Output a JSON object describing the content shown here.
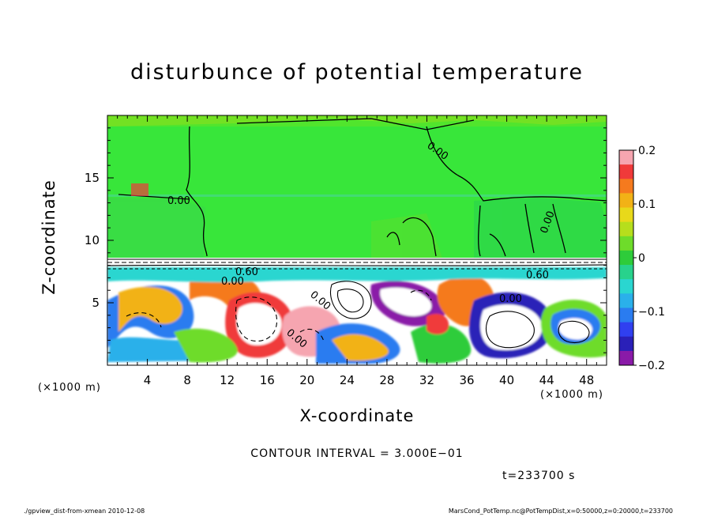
{
  "chart_data": {
    "type": "heatmap",
    "title": "disturbunce of potential temperature",
    "xlabel": "X-coordinate",
    "ylabel": "Z-coordinate",
    "x_unit": "(×1000 m)",
    "x_ticks": [
      "4",
      "8",
      "12",
      "16",
      "20",
      "24",
      "28",
      "32",
      "36",
      "40",
      "44",
      "48"
    ],
    "y_ticks": [
      "5",
      "10",
      "15"
    ],
    "xlim": [
      0,
      50
    ],
    "ylim": [
      0,
      20
    ],
    "colorbar": {
      "ticks": [
        "0.2",
        "0.1",
        "0",
        "−0.1",
        "−0.2"
      ],
      "range": [
        -0.2,
        0.2
      ],
      "colors": [
        "#f6a5b0",
        "#f03a3a",
        "#f57a1e",
        "#f2b216",
        "#e8d91a",
        "#b6de1c",
        "#6edc2a",
        "#2ecc3a",
        "#28d28c",
        "#2ad6d0",
        "#2ab0ea",
        "#2a7cf0",
        "#3040f0",
        "#2a20b8",
        "#8a1aa8"
      ]
    },
    "contour_labels": [
      "0.00",
      "0.00",
      "0.00",
      "0.00",
      "0.60",
      "0.00",
      "0.60",
      "0.00",
      "0.00"
    ],
    "contour_interval": "CONTOUR INTERVAL = 3.000E−01",
    "time": "t=233700  s"
  },
  "footer": {
    "left": "./gpview_dist-from-xmean  2010-12-08",
    "right": "MarsCond_PotTemp.nc@PotTempDist,x=0:50000,z=0:20000,t=233700"
  }
}
